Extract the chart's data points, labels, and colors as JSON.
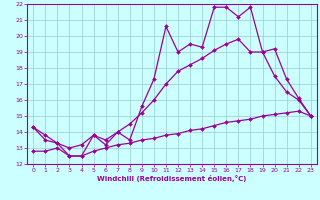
{
  "x": [
    0,
    1,
    2,
    3,
    4,
    5,
    6,
    7,
    8,
    9,
    10,
    11,
    12,
    13,
    14,
    15,
    16,
    17,
    18,
    19,
    20,
    21,
    22,
    23
  ],
  "line_top": [
    14.3,
    13.8,
    13.3,
    12.5,
    12.5,
    13.8,
    13.2,
    14.0,
    13.5,
    15.6,
    17.3,
    20.6,
    19.0,
    19.5,
    19.3,
    21.8,
    21.8,
    21.2,
    21.8,
    19.0,
    19.2,
    17.3,
    16.1,
    15.0
  ],
  "line_mid": [
    14.3,
    13.5,
    13.3,
    13.0,
    13.2,
    13.8,
    13.5,
    14.0,
    14.5,
    15.2,
    16.0,
    17.0,
    17.8,
    18.2,
    18.6,
    19.1,
    19.5,
    19.8,
    19.0,
    19.0,
    17.5,
    16.5,
    16.0,
    15.0
  ],
  "line_bot": [
    12.8,
    12.8,
    13.0,
    12.5,
    12.5,
    12.8,
    13.0,
    13.2,
    13.3,
    13.5,
    13.6,
    13.8,
    13.9,
    14.1,
    14.2,
    14.4,
    14.6,
    14.7,
    14.8,
    15.0,
    15.1,
    15.2,
    15.3,
    15.0
  ],
  "color": "#990099",
  "bg_color": "#ccffff",
  "grid_color": "#99cccc",
  "ylim": [
    12,
    22
  ],
  "xlim": [
    -0.5,
    23.5
  ],
  "xlabel": "Windchill (Refroidissement éolien,°C)",
  "yticks": [
    12,
    13,
    14,
    15,
    16,
    17,
    18,
    19,
    20,
    21,
    22
  ],
  "xticks": [
    0,
    1,
    2,
    3,
    4,
    5,
    6,
    7,
    8,
    9,
    10,
    11,
    12,
    13,
    14,
    15,
    16,
    17,
    18,
    19,
    20,
    21,
    22,
    23
  ]
}
